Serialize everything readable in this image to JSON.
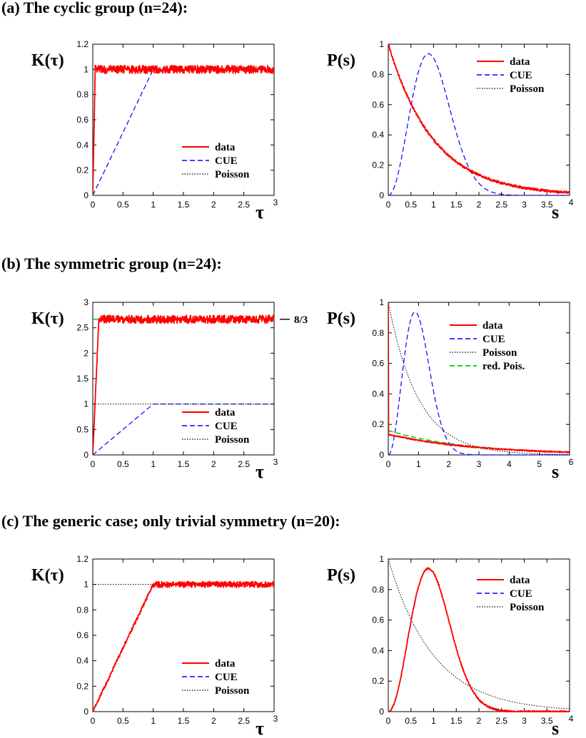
{
  "sections": [
    {
      "title": "(a) The cyclic group (n=24):"
    },
    {
      "title": "(b)  The symmetric group (n=24):"
    },
    {
      "title": "(c) The generic case; only trivial symmetry (n=20):"
    }
  ],
  "colors": {
    "data": "#ff0000",
    "cue": "#0000ff",
    "poisson": "#000000",
    "red_pois": "#00cc00"
  },
  "chart_data": [
    {
      "id": "a-left",
      "type": "line",
      "ylabel": "K(τ)",
      "xlabel": "τ",
      "xlim": [
        0,
        3
      ],
      "ylim": [
        0,
        1.2
      ],
      "xticks": [
        "0",
        "0.5",
        "1",
        "1.5",
        "2",
        "2.5",
        "3"
      ],
      "yticks": [
        "0",
        "0.2",
        "0.4",
        "0.6",
        "0.8",
        "1",
        "1.2"
      ],
      "xtick_values": [
        0,
        0.5,
        1,
        1.5,
        2,
        2.5,
        3
      ],
      "ytick_values": [
        0,
        0.2,
        0.4,
        0.6,
        0.8,
        1,
        1.2
      ],
      "legend": [
        "data",
        "CUE",
        "Poisson"
      ],
      "legend_position": "bottom-right",
      "series": [
        {
          "name": "data",
          "kind": "form_factor",
          "rise_to": 0.04,
          "level": 1.0,
          "noise": 0.04
        },
        {
          "name": "CUE",
          "x": [
            0,
            1,
            3
          ],
          "y": [
            0,
            1,
            1
          ]
        },
        {
          "name": "Poisson",
          "x": [
            0,
            3
          ],
          "y": [
            1,
            1
          ]
        }
      ]
    },
    {
      "id": "a-right",
      "type": "line",
      "ylabel": "P(s)",
      "xlabel": "s",
      "xlim": [
        0,
        4
      ],
      "ylim": [
        0,
        1
      ],
      "xticks": [
        "0",
        "0.5",
        "1",
        "1.5",
        "2",
        "2.5",
        "3",
        "3.5",
        "4"
      ],
      "yticks": [
        "0",
        "0.2",
        "0.4",
        "0.6",
        "0.8",
        "1"
      ],
      "xtick_values": [
        0,
        0.5,
        1,
        1.5,
        2,
        2.5,
        3,
        3.5,
        4
      ],
      "ytick_values": [
        0,
        0.2,
        0.4,
        0.6,
        0.8,
        1
      ],
      "legend": [
        "data",
        "CUE",
        "Poisson"
      ],
      "legend_position": "top-right",
      "series": [
        {
          "name": "data",
          "kind": "exp",
          "amp": 1.0,
          "rate": 1.0,
          "noise": 0.008
        },
        {
          "name": "CUE",
          "kind": "cue"
        },
        {
          "name": "Poisson",
          "kind": "exp",
          "amp": 1.0,
          "rate": 1.0
        }
      ]
    },
    {
      "id": "b-left",
      "type": "line",
      "ylabel": "K(τ)",
      "xlabel": "τ",
      "xlim": [
        0,
        3
      ],
      "ylim": [
        0,
        3
      ],
      "xticks": [
        "0",
        "0.5",
        "1",
        "1.5",
        "2",
        "2.5",
        "3"
      ],
      "yticks": [
        "0",
        "0.5",
        "1",
        "1.5",
        "2",
        "2.5",
        "3"
      ],
      "xtick_values": [
        0,
        0.5,
        1,
        1.5,
        2,
        2.5,
        3
      ],
      "ytick_values": [
        0,
        0.5,
        1,
        1.5,
        2,
        2.5,
        3
      ],
      "legend": [
        "data",
        "CUE",
        "Poisson"
      ],
      "legend_position": "bottom-right",
      "annotation": {
        "text": "8/3",
        "y": 2.667
      },
      "series": [
        {
          "name": "data",
          "kind": "form_factor",
          "rise_to": 0.1,
          "level": 2.667,
          "noise": 0.1
        },
        {
          "name": "CUE",
          "x": [
            0,
            1,
            3
          ],
          "y": [
            0,
            1,
            1
          ]
        },
        {
          "name": "Poisson",
          "x": [
            0,
            3
          ],
          "y": [
            1,
            1
          ]
        },
        {
          "name": "red. Pois.",
          "x": [
            0,
            3
          ],
          "y": [
            2.667,
            2.667
          ]
        }
      ]
    },
    {
      "id": "b-right",
      "type": "line",
      "ylabel": "P(s)",
      "xlabel": "s",
      "xlim": [
        0,
        6
      ],
      "ylim": [
        0,
        1
      ],
      "xticks": [
        "0",
        "1",
        "2",
        "3",
        "4",
        "5",
        "6"
      ],
      "yticks": [
        "0",
        "0.2",
        "0.4",
        "0.6",
        "0.8",
        "1"
      ],
      "xtick_values": [
        0,
        1,
        2,
        3,
        4,
        5,
        6
      ],
      "ytick_values": [
        0,
        0.2,
        0.4,
        0.6,
        0.8,
        1
      ],
      "legend": [
        "data",
        "CUE",
        "Poisson",
        "red. Pois."
      ],
      "legend_position": "top-right",
      "series": [
        {
          "name": "data",
          "kind": "exp",
          "amp": 0.135,
          "rate": 0.34,
          "noise": 0.004,
          "spike_at_zero": true
        },
        {
          "name": "CUE",
          "kind": "cue"
        },
        {
          "name": "Poisson",
          "kind": "exp",
          "amp": 1.0,
          "rate": 1.0
        },
        {
          "name": "red. Pois.",
          "kind": "exp",
          "amp": 0.16,
          "rate": 0.375
        }
      ]
    },
    {
      "id": "c-left",
      "type": "line",
      "ylabel": "K(τ)",
      "xlabel": "τ",
      "xlim": [
        0,
        3
      ],
      "ylim": [
        0,
        1.2
      ],
      "xticks": [
        "0",
        "0.5",
        "1",
        "1.5",
        "2",
        "2.5",
        "3"
      ],
      "yticks": [
        "0",
        "0.2",
        "0.4",
        "0.6",
        "0.8",
        "1",
        "1.2"
      ],
      "xtick_values": [
        0,
        0.5,
        1,
        1.5,
        2,
        2.5,
        3
      ],
      "ytick_values": [
        0,
        0.2,
        0.4,
        0.6,
        0.8,
        1,
        1.2
      ],
      "legend": [
        "data",
        "CUE",
        "Poisson"
      ],
      "legend_position": "bottom-right",
      "series": [
        {
          "name": "data",
          "kind": "form_factor",
          "rise_to": 1.0,
          "level": 1.0,
          "noise": 0.03
        },
        {
          "name": "CUE",
          "x": [
            0,
            1,
            3
          ],
          "y": [
            0,
            1,
            1
          ]
        },
        {
          "name": "Poisson",
          "x": [
            0,
            3
          ],
          "y": [
            1,
            1
          ]
        }
      ]
    },
    {
      "id": "c-right",
      "type": "line",
      "ylabel": "P(s)",
      "xlabel": "s",
      "xlim": [
        0,
        4
      ],
      "ylim": [
        0,
        1
      ],
      "xticks": [
        "0",
        "0.5",
        "1",
        "1.5",
        "2",
        "2.5",
        "3",
        "3.5",
        "4"
      ],
      "yticks": [
        "0",
        "0.2",
        "0.4",
        "0.6",
        "0.8",
        "1"
      ],
      "xtick_values": [
        0,
        0.5,
        1,
        1.5,
        2,
        2.5,
        3,
        3.5,
        4
      ],
      "ytick_values": [
        0,
        0.2,
        0.4,
        0.6,
        0.8,
        1
      ],
      "legend": [
        "data",
        "CUE",
        "Poisson"
      ],
      "legend_position": "top-right",
      "series": [
        {
          "name": "data",
          "kind": "cue",
          "noise": 0.006
        },
        {
          "name": "CUE",
          "kind": "cue"
        },
        {
          "name": "Poisson",
          "kind": "exp",
          "amp": 1.0,
          "rate": 1.0
        }
      ]
    }
  ]
}
